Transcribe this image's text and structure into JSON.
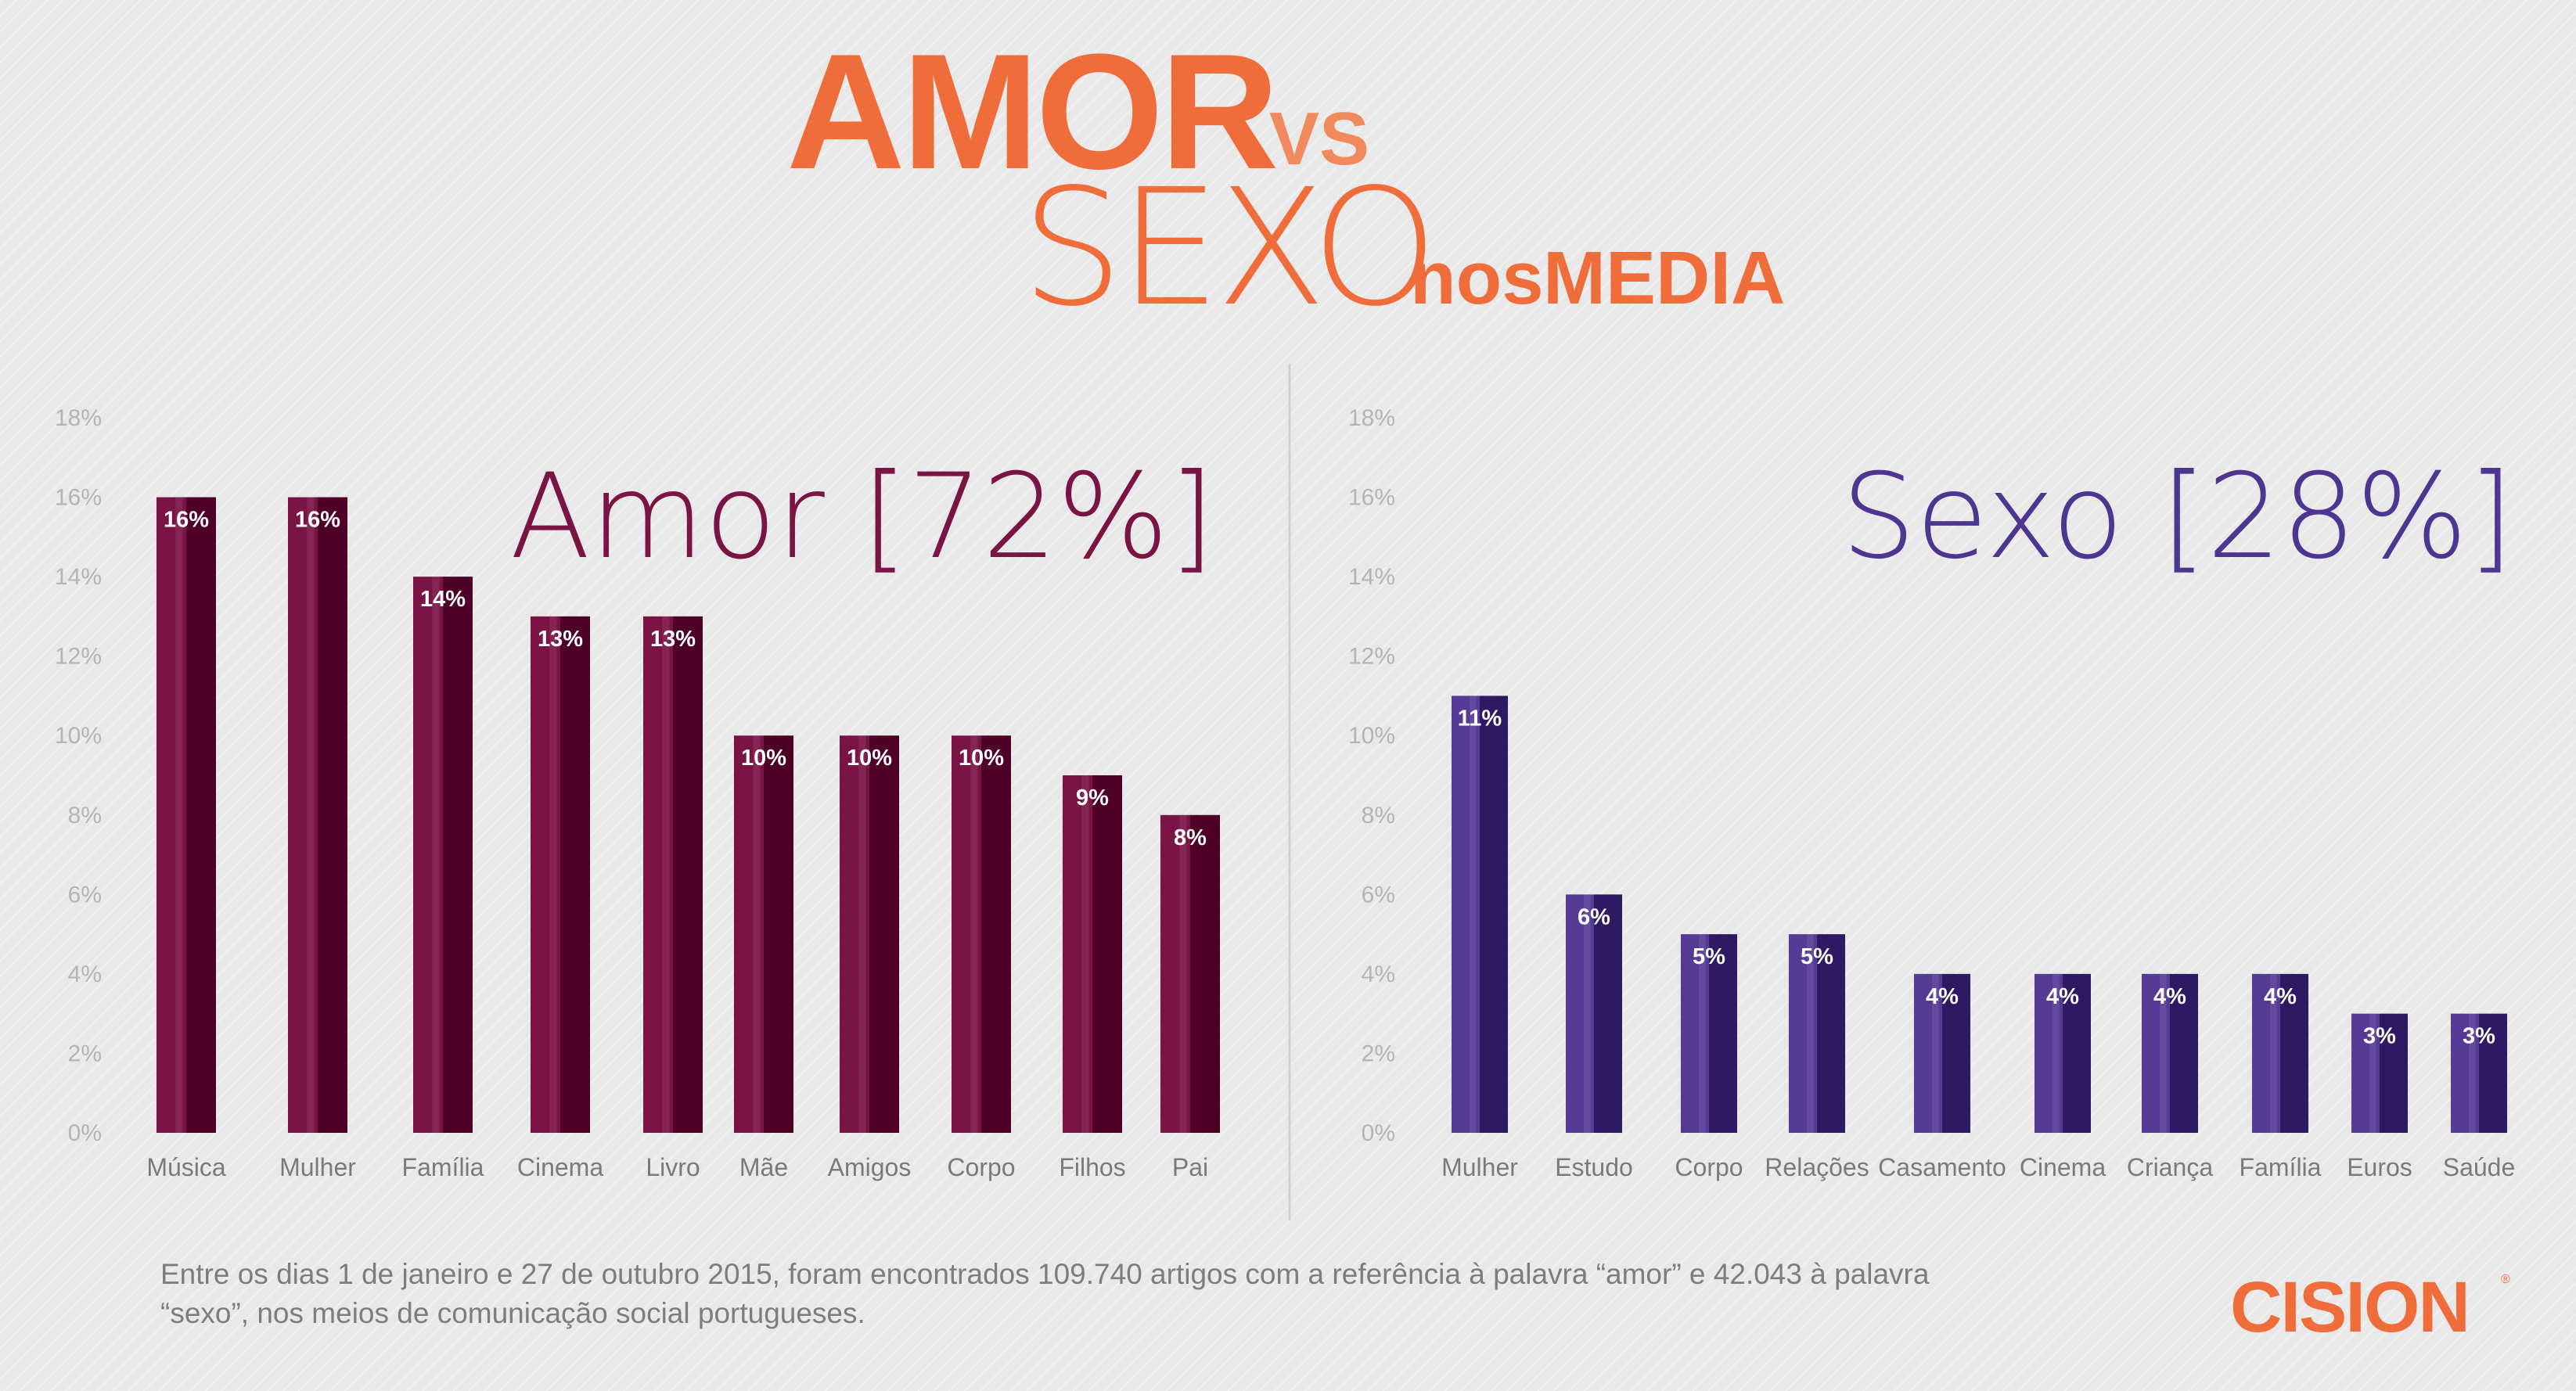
{
  "title": {
    "amor": "AMOR",
    "vs": "VS",
    "sexo": "SEXO",
    "nos": "nos",
    "media": "MEDIA"
  },
  "chart_data": [
    {
      "type": "bar",
      "title": "Amor [72%]",
      "categories": [
        "Música",
        "Mulher",
        "Família",
        "Cinema",
        "Livro",
        "Mãe",
        "Amigos",
        "Corpo",
        "Filhos",
        "Pai"
      ],
      "values": [
        16,
        16,
        14,
        13,
        13,
        10,
        10,
        10,
        9,
        8
      ],
      "value_labels": [
        "16%",
        "16%",
        "14%",
        "13%",
        "13%",
        "10%",
        "10%",
        "10%",
        "9%",
        "8%"
      ],
      "ylim": [
        0,
        18
      ],
      "yticks": [
        "0%",
        "2%",
        "4%",
        "6%",
        "8%",
        "10%",
        "12%",
        "14%",
        "16%",
        "18%"
      ],
      "color_light": "#7a1445",
      "color_dark": "#4e0026",
      "grid": false
    },
    {
      "type": "bar",
      "title": "Sexo [28%]",
      "categories": [
        "Mulher",
        "Estudo",
        "Corpo",
        "Relações",
        "Casamento",
        "Cinema",
        "Criança",
        "Família",
        "Euros",
        "Saúde"
      ],
      "values": [
        11,
        6,
        5,
        5,
        4,
        4,
        4,
        4,
        3,
        3
      ],
      "value_labels": [
        "11%",
        "6%",
        "5%",
        "5%",
        "4%",
        "4%",
        "4%",
        "4%",
        "3%",
        "3%"
      ],
      "ylim": [
        0,
        18
      ],
      "yticks": [
        "0%",
        "2%",
        "4%",
        "6%",
        "8%",
        "10%",
        "12%",
        "14%",
        "16%",
        "18%"
      ],
      "color_light": "#553b96",
      "color_dark": "#2e1a62",
      "grid": false
    }
  ],
  "footnote": "Entre os dias 1 de janeiro e 27 de outubro 2015, foram encontrados 109.740 artigos com a referência à palavra “amor” e 42.043 à palavra “sexo”, nos meios de comunicação social portugueses.",
  "logo": {
    "text": "CISION",
    "mark": "®"
  },
  "colors": {
    "accent": "#ee6d3a",
    "background": "#e8e8e8"
  }
}
